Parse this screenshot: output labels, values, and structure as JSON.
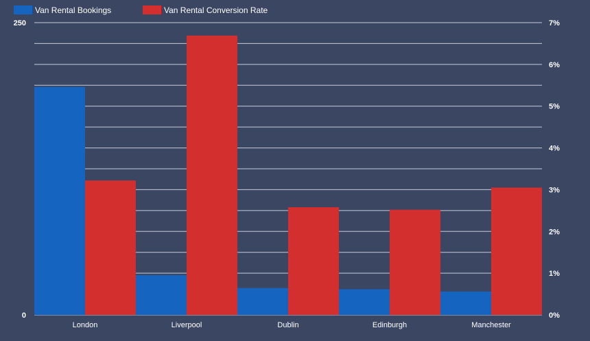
{
  "chart_data": {
    "type": "bar",
    "categories": [
      "London",
      "Liverpool",
      "Dublin",
      "Edinburgh",
      "Manchester"
    ],
    "series": [
      {
        "name": "Van Rental Bookings",
        "axis": "left",
        "color": "#1565c0",
        "values": [
          195,
          34,
          23,
          22,
          20
        ]
      },
      {
        "name": "Van Rental Conversion Rate",
        "axis": "right",
        "color": "#d32f2f",
        "values": [
          3.22,
          6.69,
          2.58,
          2.52,
          3.05
        ]
      }
    ],
    "left_axis": {
      "ylim": [
        0,
        250
      ],
      "tick_labels": [
        "0",
        "250"
      ]
    },
    "right_axis": {
      "ylim": [
        0,
        7
      ],
      "ticks": [
        0,
        1,
        2,
        3,
        4,
        5,
        6,
        7
      ],
      "tick_labels": [
        "0%",
        "1%",
        "2%",
        "3%",
        "4%",
        "5%",
        "6%",
        "7%"
      ]
    },
    "grid": true,
    "legend": "top-left",
    "background": "#3b4663"
  }
}
